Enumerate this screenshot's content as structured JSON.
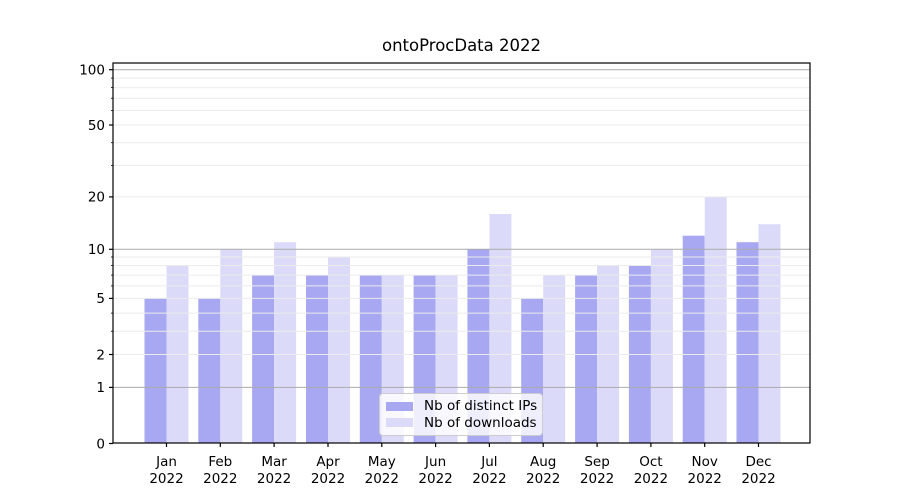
{
  "title": "ontoProcData 2022",
  "chart_data": {
    "type": "bar",
    "title": "ontoProcData 2022",
    "x_categories": [
      "Jan 2022",
      "Feb 2022",
      "Mar 2022",
      "Apr 2022",
      "May 2022",
      "Jun 2022",
      "Jul 2022",
      "Aug 2022",
      "Sep 2022",
      "Oct 2022",
      "Nov 2022",
      "Dec 2022"
    ],
    "months": [
      "Jan",
      "Feb",
      "Mar",
      "Apr",
      "May",
      "Jun",
      "Jul",
      "Aug",
      "Sep",
      "Oct",
      "Nov",
      "Dec"
    ],
    "year_label": "2022",
    "series": [
      {
        "name": "Nb of distinct IPs",
        "color": "#a8a8f2",
        "values": [
          5,
          5,
          7,
          7,
          7,
          7,
          10,
          5,
          7,
          8,
          12,
          11
        ]
      },
      {
        "name": "Nb of downloads",
        "color": "#dbdbf9",
        "values": [
          8,
          10,
          11,
          9,
          7,
          7,
          16,
          7,
          8,
          10,
          20,
          14
        ]
      }
    ],
    "y_scale": "log1p",
    "y_ticks_labeled": [
      0,
      1,
      2,
      5,
      10,
      20,
      50,
      100
    ],
    "y_major_gridlines": [
      1,
      10,
      100
    ],
    "y_minor_gridlines": [
      2,
      3,
      4,
      5,
      6,
      7,
      8,
      9,
      20,
      30,
      40,
      50,
      60,
      70,
      80,
      90
    ],
    "ylim": [
      0,
      110
    ],
    "grid": true,
    "legend_position": "lower center",
    "colors": {
      "axis": "#000000",
      "major_grid": "#ababab",
      "minor_grid": "#ebebeb",
      "tick_label": "#000000"
    }
  }
}
